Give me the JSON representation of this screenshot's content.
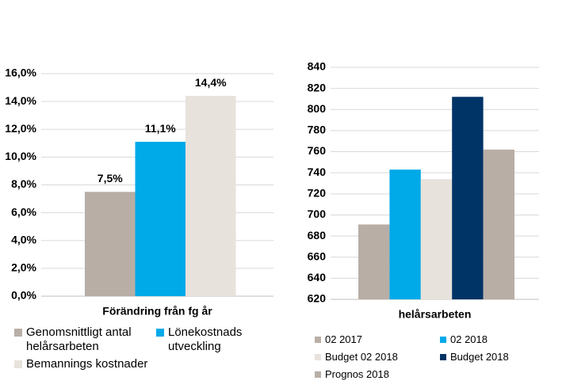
{
  "chart_data": [
    {
      "type": "bar",
      "categories": [
        "Förändring från fg år"
      ],
      "series": [
        {
          "name": "Genomsnittligt antal helårsarbeten",
          "color": "#b8aea6",
          "values": [
            7.5
          ],
          "value_labels": [
            "7,5%"
          ]
        },
        {
          "name": "Lönekostnads utveckling",
          "color": "#00a9e8",
          "values": [
            11.1
          ],
          "value_labels": [
            "11,1%"
          ]
        },
        {
          "name": "Bemannings kostnader",
          "color": "#e8e2dc",
          "values": [
            14.4
          ],
          "value_labels": [
            "14,4%"
          ]
        }
      ],
      "ylim": [
        0,
        16
      ],
      "yticks": [
        {
          "value": 0,
          "label": "0,0%"
        },
        {
          "value": 2,
          "label": "2,0%"
        },
        {
          "value": 4,
          "label": "4,0%"
        },
        {
          "value": 6,
          "label": "6,0%"
        },
        {
          "value": 8,
          "label": "8,0%"
        },
        {
          "value": 10,
          "label": "10,0%"
        },
        {
          "value": 12,
          "label": "12,0%"
        },
        {
          "value": 14,
          "label": "14,0%"
        },
        {
          "value": 16,
          "label": "16,0%"
        }
      ],
      "grid": true
    },
    {
      "type": "bar",
      "categories": [
        "helårsarbeten"
      ],
      "series": [
        {
          "name": "02 2017",
          "color": "#b8aea6",
          "values": [
            691
          ]
        },
        {
          "name": "02 2018",
          "color": "#00a9e8",
          "values": [
            743
          ]
        },
        {
          "name": "Budget 02 2018",
          "color": "#e8e2dc",
          "values": [
            734
          ]
        },
        {
          "name": "Budget 2018",
          "color": "#003366",
          "values": [
            812
          ]
        },
        {
          "name": "Prognos 2018",
          "color": "#b8aea6",
          "values": [
            762
          ]
        }
      ],
      "ylim": [
        620,
        840
      ],
      "yticks": [
        620,
        640,
        660,
        680,
        700,
        720,
        740,
        760,
        780,
        800,
        820,
        840
      ],
      "grid": true
    }
  ]
}
